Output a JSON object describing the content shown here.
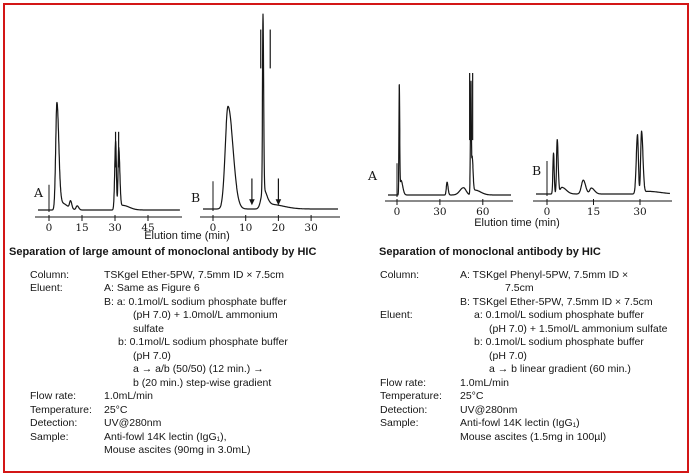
{
  "figure": {
    "left_caption": "Elution time (min)",
    "right_caption": "Elution time (min)"
  },
  "chart_data": [
    {
      "id": "large-A",
      "type": "line",
      "panel_label": "A",
      "figure_title": "Separation of large amount of monoclonal antibody by HIC",
      "xlabel": "Elution time (min)",
      "ylabel": "",
      "x_ticks": [
        0,
        15,
        30,
        45
      ],
      "peaks": [
        {
          "t": 3.6,
          "h": 0.93,
          "wl": 0.55,
          "wr": 0.85
        },
        {
          "t": 5.8,
          "h": 0.06,
          "wl": 1.0,
          "wr": 2.5
        },
        {
          "t": 9.8,
          "h": 0.065,
          "wl": 0.45,
          "wr": 0.55
        },
        {
          "t": 12.8,
          "h": 0.035,
          "wl": 0.5,
          "wr": 0.7
        },
        {
          "t": 30.3,
          "h": 0.6,
          "wl": 0.42,
          "wr": 0.33
        },
        {
          "t": 31.7,
          "h": 0.54,
          "wl": 0.33,
          "wr": 0.5
        },
        {
          "t": 33.5,
          "h": 0.04,
          "wl": 0.8,
          "wr": 3.0
        }
      ],
      "clip_marks": [
        {
          "t": 30.25,
          "from": 0.37,
          "to": 0.68
        },
        {
          "t": 31.65,
          "from": 0.37,
          "to": 0.68
        }
      ],
      "arrows": []
    },
    {
      "id": "large-B",
      "type": "line",
      "panel_label": "B",
      "figure_title": "Separation of large amount of monoclonal antibody by HIC",
      "xlabel": "Elution time (min)",
      "ylabel": "",
      "x_ticks": [
        0,
        10,
        20,
        30
      ],
      "peaks": [
        {
          "t": 4.6,
          "h": 0.555,
          "wl": 0.85,
          "wr": 1.5
        },
        {
          "t": 15.3,
          "h": 0.95,
          "wl": 0.16,
          "wr": 0.19
        },
        {
          "t": 15.4,
          "h": 0.1,
          "wl": 0.7,
          "wr": 1.0
        },
        {
          "t": 17.5,
          "h": 0.025,
          "wl": 1.2,
          "wr": 4.0
        }
      ],
      "clip_marks": [
        {
          "t": 14.6,
          "from": 0.76,
          "to": 0.97
        },
        {
          "t": 17.5,
          "from": 0.76,
          "to": 0.97
        }
      ],
      "arrows": [
        {
          "t": 11.9,
          "from": 0.165,
          "to": 0.02
        },
        {
          "t": 20.0,
          "from": 0.165,
          "to": 0.02
        }
      ]
    },
    {
      "id": "mono-A",
      "type": "line",
      "panel_label": "A",
      "figure_title": "Separation of monoclonal antibody by HIC",
      "xlabel": "Elution time (min)",
      "ylabel": "",
      "x_ticks": [
        0,
        30,
        60
      ],
      "peaks": [
        {
          "t": 1.6,
          "h": 0.9,
          "wl": 0.25,
          "wr": 0.3
        },
        {
          "t": 2.8,
          "h": 0.12,
          "wl": 0.5,
          "wr": 1.2
        },
        {
          "t": 35.0,
          "h": 0.105,
          "wl": 0.5,
          "wr": 0.7
        },
        {
          "t": 46.5,
          "h": 0.06,
          "wl": 2.5,
          "wr": 1.8
        },
        {
          "t": 51.7,
          "h": 0.93,
          "wl": 0.35,
          "wr": 0.3
        },
        {
          "t": 52.6,
          "h": 0.3,
          "wl": 0.3,
          "wr": 0.6
        },
        {
          "t": 54.5,
          "h": 0.04,
          "wl": 1.0,
          "wr": 4.0
        }
      ],
      "clip_marks": [
        {
          "t": 50.8,
          "from": 0.45,
          "to": 1.0
        },
        {
          "t": 52.9,
          "from": 0.45,
          "to": 1.0
        }
      ],
      "arrows": []
    },
    {
      "id": "mono-B",
      "type": "line",
      "panel_label": "B",
      "figure_title": "Separation of monoclonal antibody by HIC",
      "xlabel": "Elution time (min)",
      "ylabel": "",
      "x_ticks": [
        0,
        15,
        30
      ],
      "peaks": [
        {
          "t": 2.1,
          "h": 0.62,
          "wl": 0.2,
          "wr": 0.22
        },
        {
          "t": 3.3,
          "h": 0.82,
          "wl": 0.22,
          "wr": 0.3
        },
        {
          "t": 4.8,
          "h": 0.1,
          "wl": 0.6,
          "wr": 1.4
        },
        {
          "t": 11.7,
          "h": 0.21,
          "wl": 0.6,
          "wr": 0.75
        },
        {
          "t": 14.3,
          "h": 0.09,
          "wl": 0.5,
          "wr": 1.0
        },
        {
          "t": 29.2,
          "h": 0.9,
          "wl": 0.4,
          "wr": 0.28
        },
        {
          "t": 30.5,
          "h": 0.95,
          "wl": 0.28,
          "wr": 0.45
        },
        {
          "t": 32.5,
          "h": 0.04,
          "wl": 1.0,
          "wr": 4.0
        }
      ],
      "clip_marks": [],
      "arrows": []
    }
  ],
  "sections": {
    "left": {
      "title": "Separation of large amount of monoclonal antibody by HIC",
      "rows": [
        {
          "label": "Column:",
          "lines": [
            {
              "text": "TSKgel Ether-5PW, 7.5mm ID × 7.5cm",
              "ind": 0
            }
          ]
        },
        {
          "label": "Eluent:",
          "lines": [
            {
              "text": "A: Same as Figure 6",
              "ind": 0
            },
            {
              "text": "B: a: 0.1mol/L sodium phosphate buffer",
              "ind": 0
            },
            {
              "text": "(pH 7.0) + 1.0mol/L ammonium",
              "ind": 2
            },
            {
              "text": "sulfate",
              "ind": 2
            },
            {
              "text": "b: 0.1mol/L sodium phosphate buffer",
              "ind": 1
            },
            {
              "text": "(pH 7.0)",
              "ind": 2
            },
            {
              "text": "a → a/b (50/50) (12 min.) →",
              "ind": 2
            },
            {
              "text": "b (20 min.) step-wise gradient",
              "ind": 2
            }
          ]
        },
        {
          "label": "Flow rate:",
          "lines": [
            {
              "text": "1.0mL/min",
              "ind": 0
            }
          ]
        },
        {
          "label": "Temperature:",
          "lines": [
            {
              "text": "25°C",
              "ind": 0
            }
          ]
        },
        {
          "label": "Detection:",
          "lines": [
            {
              "text": "UV@280nm",
              "ind": 0
            }
          ]
        },
        {
          "label": "Sample:",
          "lines": [
            {
              "text": "Anti-fowl 14K lectin (IgG₁),",
              "ind": 0
            },
            {
              "text": "Mouse ascites (90mg in 3.0mL)",
              "ind": 0
            }
          ]
        }
      ]
    },
    "right": {
      "title": "Separation of monoclonal antibody by HIC",
      "rows": [
        {
          "label": "Column:",
          "lines": [
            {
              "text": "A: TSKgel Phenyl-5PW, 7.5mm ID ×",
              "ind": 0
            },
            {
              "text": "7.5cm",
              "ind": 3
            },
            {
              "text": "B: TSKgel Ether-5PW, 7.5mm ID × 7.5cm",
              "ind": 0
            }
          ]
        },
        {
          "label": "Eluent:",
          "lines": [
            {
              "text": "a: 0.1mol/L sodium phosphate buffer",
              "ind": 1
            },
            {
              "text": "(pH 7.0) + 1.5mol/L ammonium sulfate",
              "ind": 2
            },
            {
              "text": "b: 0.1mol/L sodium phosphate buffer",
              "ind": 1
            },
            {
              "text": "(pH 7.0)",
              "ind": 2
            },
            {
              "text": "a → b linear gradient (60 min.)",
              "ind": 2
            }
          ]
        },
        {
          "label": "Flow rate:",
          "lines": [
            {
              "text": "1.0mL/min",
              "ind": 0
            }
          ]
        },
        {
          "label": "Temperature:",
          "lines": [
            {
              "text": "25°C",
              "ind": 0
            }
          ]
        },
        {
          "label": "Detection:",
          "lines": [
            {
              "text": "UV@280nm",
              "ind": 0
            }
          ]
        },
        {
          "label": "Sample:",
          "lines": [
            {
              "text": "Anti-fowl 14K lectin (IgG₁)",
              "ind": 0
            },
            {
              "text": "Mouse ascites (1.5mg in 100µl)",
              "ind": 0
            }
          ]
        }
      ]
    }
  }
}
